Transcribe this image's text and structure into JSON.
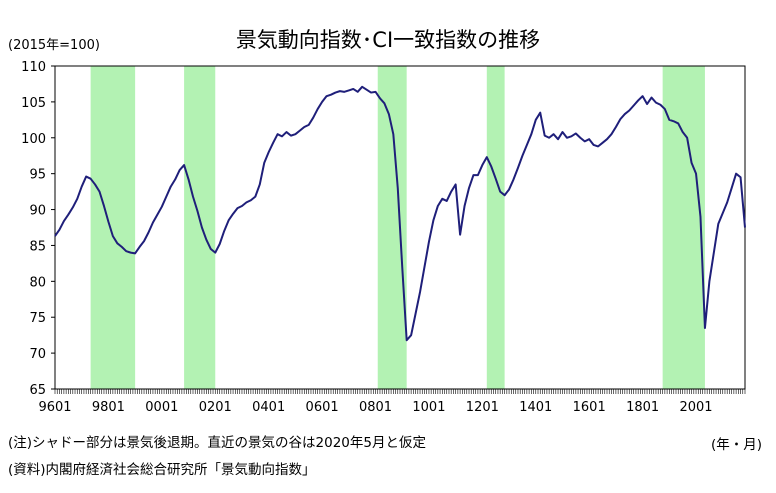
{
  "chart_data": {
    "type": "line",
    "title": "景気動向指数･CI一致指数の推移",
    "unit_label": "(2015年=100)",
    "x_unit_label": "(年・月)",
    "note": "(注)シャドー部分は景気後退期。直近の景気の谷は2020年5月と仮定",
    "source": "(資料)内閣府経済社会総合研究所「景気動向指数」",
    "ylim": [
      65,
      110
    ],
    "yticks": [
      65,
      70,
      75,
      80,
      85,
      90,
      95,
      100,
      105,
      110
    ],
    "xlim": [
      "1996-01",
      "2021-11"
    ],
    "xtick_labels": [
      "9601",
      "9801",
      "0001",
      "0201",
      "0401",
      "0601",
      "0801",
      "1001",
      "1201",
      "1401",
      "1601",
      "1801",
      "2001"
    ],
    "xtick_dates": [
      "1996-01",
      "1998-01",
      "2000-01",
      "2002-01",
      "2004-01",
      "2006-01",
      "2008-01",
      "2010-01",
      "2012-01",
      "2014-01",
      "2016-01",
      "2018-01",
      "2020-01"
    ],
    "line_color": "#1f1f7a",
    "shade_color": "#b3f2b3",
    "recessions": [
      {
        "start": "1997-05",
        "end": "1999-01"
      },
      {
        "start": "2000-11",
        "end": "2002-01"
      },
      {
        "start": "2008-02",
        "end": "2009-03"
      },
      {
        "start": "2012-03",
        "end": "2012-11"
      },
      {
        "start": "2018-10",
        "end": "2020-05"
      }
    ],
    "series": [
      {
        "points": [
          [
            "1996-01",
            86.3
          ],
          [
            "1996-03",
            87.2
          ],
          [
            "1996-05",
            88.4
          ],
          [
            "1996-07",
            89.3
          ],
          [
            "1996-09",
            90.3
          ],
          [
            "1996-11",
            91.5
          ],
          [
            "1997-01",
            93.2
          ],
          [
            "1997-03",
            94.6
          ],
          [
            "1997-05",
            94.3
          ],
          [
            "1997-07",
            93.5
          ],
          [
            "1997-09",
            92.5
          ],
          [
            "1997-11",
            90.5
          ],
          [
            "1998-01",
            88.3
          ],
          [
            "1998-03",
            86.3
          ],
          [
            "1998-05",
            85.3
          ],
          [
            "1998-07",
            84.8
          ],
          [
            "1998-09",
            84.2
          ],
          [
            "1998-11",
            84.0
          ],
          [
            "1999-01",
            83.9
          ],
          [
            "1999-03",
            84.8
          ],
          [
            "1999-05",
            85.6
          ],
          [
            "1999-07",
            86.8
          ],
          [
            "1999-09",
            88.2
          ],
          [
            "1999-11",
            89.3
          ],
          [
            "2000-01",
            90.4
          ],
          [
            "2000-03",
            91.8
          ],
          [
            "2000-05",
            93.2
          ],
          [
            "2000-07",
            94.2
          ],
          [
            "2000-09",
            95.5
          ],
          [
            "2000-11",
            96.2
          ],
          [
            "2001-01",
            94.2
          ],
          [
            "2001-03",
            91.8
          ],
          [
            "2001-05",
            89.8
          ],
          [
            "2001-07",
            87.5
          ],
          [
            "2001-09",
            85.8
          ],
          [
            "2001-11",
            84.5
          ],
          [
            "2002-01",
            84.0
          ],
          [
            "2002-03",
            85.2
          ],
          [
            "2002-05",
            87.0
          ],
          [
            "2002-07",
            88.5
          ],
          [
            "2002-09",
            89.4
          ],
          [
            "2002-11",
            90.2
          ],
          [
            "2003-01",
            90.5
          ],
          [
            "2003-03",
            91.0
          ],
          [
            "2003-05",
            91.3
          ],
          [
            "2003-07",
            91.8
          ],
          [
            "2003-09",
            93.5
          ],
          [
            "2003-11",
            96.5
          ],
          [
            "2004-01",
            98.0
          ],
          [
            "2004-03",
            99.3
          ],
          [
            "2004-05",
            100.5
          ],
          [
            "2004-07",
            100.2
          ],
          [
            "2004-09",
            100.8
          ],
          [
            "2004-11",
            100.3
          ],
          [
            "2005-01",
            100.5
          ],
          [
            "2005-03",
            101.0
          ],
          [
            "2005-05",
            101.5
          ],
          [
            "2005-07",
            101.8
          ],
          [
            "2005-09",
            102.8
          ],
          [
            "2005-11",
            104.0
          ],
          [
            "2006-01",
            105.0
          ],
          [
            "2006-03",
            105.8
          ],
          [
            "2006-05",
            106.0
          ],
          [
            "2006-07",
            106.3
          ],
          [
            "2006-09",
            106.5
          ],
          [
            "2006-11",
            106.4
          ],
          [
            "2007-01",
            106.6
          ],
          [
            "2007-03",
            106.8
          ],
          [
            "2007-05",
            106.4
          ],
          [
            "2007-07",
            107.1
          ],
          [
            "2007-09",
            106.7
          ],
          [
            "2007-11",
            106.3
          ],
          [
            "2008-01",
            106.4
          ],
          [
            "2008-03",
            105.5
          ],
          [
            "2008-05",
            104.8
          ],
          [
            "2008-07",
            103.3
          ],
          [
            "2008-09",
            100.5
          ],
          [
            "2008-11",
            93.0
          ],
          [
            "2009-01",
            82.0
          ],
          [
            "2009-03",
            71.8
          ],
          [
            "2009-05",
            72.5
          ],
          [
            "2009-07",
            75.5
          ],
          [
            "2009-09",
            78.5
          ],
          [
            "2009-11",
            82.0
          ],
          [
            "2010-01",
            85.5
          ],
          [
            "2010-03",
            88.5
          ],
          [
            "2010-05",
            90.5
          ],
          [
            "2010-07",
            91.5
          ],
          [
            "2010-09",
            91.2
          ],
          [
            "2010-11",
            92.5
          ],
          [
            "2011-01",
            93.5
          ],
          [
            "2011-03",
            86.5
          ],
          [
            "2011-05",
            90.5
          ],
          [
            "2011-07",
            93.0
          ],
          [
            "2011-09",
            94.8
          ],
          [
            "2011-11",
            94.8
          ],
          [
            "2012-01",
            96.2
          ],
          [
            "2012-03",
            97.3
          ],
          [
            "2012-05",
            96.0
          ],
          [
            "2012-07",
            94.3
          ],
          [
            "2012-09",
            92.5
          ],
          [
            "2012-11",
            92.0
          ],
          [
            "2013-01",
            92.8
          ],
          [
            "2013-03",
            94.2
          ],
          [
            "2013-05",
            95.8
          ],
          [
            "2013-07",
            97.5
          ],
          [
            "2013-09",
            99.0
          ],
          [
            "2013-11",
            100.5
          ],
          [
            "2014-01",
            102.5
          ],
          [
            "2014-03",
            103.5
          ],
          [
            "2014-05",
            100.3
          ],
          [
            "2014-07",
            100.0
          ],
          [
            "2014-09",
            100.5
          ],
          [
            "2014-11",
            99.8
          ],
          [
            "2015-01",
            100.8
          ],
          [
            "2015-03",
            100.0
          ],
          [
            "2015-05",
            100.2
          ],
          [
            "2015-07",
            100.6
          ],
          [
            "2015-09",
            100.0
          ],
          [
            "2015-11",
            99.5
          ],
          [
            "2016-01",
            99.8
          ],
          [
            "2016-03",
            99.0
          ],
          [
            "2016-05",
            98.8
          ],
          [
            "2016-07",
            99.3
          ],
          [
            "2016-09",
            99.8
          ],
          [
            "2016-11",
            100.5
          ],
          [
            "2017-01",
            101.5
          ],
          [
            "2017-03",
            102.6
          ],
          [
            "2017-05",
            103.3
          ],
          [
            "2017-07",
            103.8
          ],
          [
            "2017-09",
            104.5
          ],
          [
            "2017-11",
            105.2
          ],
          [
            "2018-01",
            105.8
          ],
          [
            "2018-03",
            104.7
          ],
          [
            "2018-05",
            105.6
          ],
          [
            "2018-07",
            104.9
          ],
          [
            "2018-09",
            104.6
          ],
          [
            "2018-11",
            104.0
          ],
          [
            "2019-01",
            102.5
          ],
          [
            "2019-03",
            102.3
          ],
          [
            "2019-05",
            102.0
          ],
          [
            "2019-07",
            100.8
          ],
          [
            "2019-09",
            100.0
          ],
          [
            "2019-11",
            96.5
          ],
          [
            "2020-01",
            95.0
          ],
          [
            "2020-03",
            89.0
          ],
          [
            "2020-05",
            73.5
          ],
          [
            "2020-07",
            80.0
          ],
          [
            "2020-09",
            84.0
          ],
          [
            "2020-11",
            88.0
          ],
          [
            "2021-01",
            89.5
          ],
          [
            "2021-03",
            91.0
          ],
          [
            "2021-05",
            93.0
          ],
          [
            "2021-07",
            95.0
          ],
          [
            "2021-09",
            94.5
          ],
          [
            "2021-11",
            87.5
          ]
        ]
      }
    ]
  }
}
